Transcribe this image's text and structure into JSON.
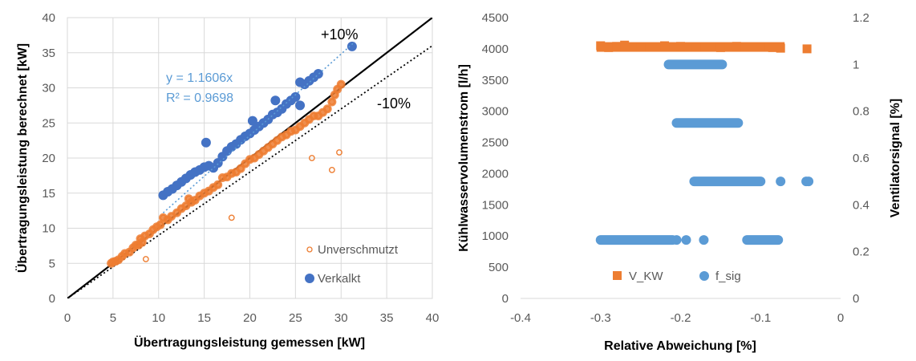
{
  "chart_data": [
    {
      "type": "scatter",
      "xlabel": "Übertragungsleistung gemessen [kW]",
      "ylabel": "Übertragungsleistung berechnet [kW]",
      "xlim": [
        0,
        40
      ],
      "ylim": [
        0,
        40
      ],
      "x_ticks": [
        "0",
        "5",
        "10",
        "15",
        "20",
        "25",
        "30",
        "35",
        "40"
      ],
      "y_ticks": [
        "0",
        "5",
        "10",
        "15",
        "20",
        "25",
        "30",
        "35",
        "40"
      ],
      "grid": true,
      "legend_position": "bottom-right",
      "colors": {
        "unverschmutzt": "#ed7d31",
        "verkalkt": "#4472c4",
        "trend": "#5b9bd5",
        "reference": "#000000"
      },
      "annotations": {
        "plus10": "+10%",
        "minus10": "-10%",
        "equation": "y = 1.1606x",
        "r_squared": "R² = 0.9698"
      },
      "reference_lines": [
        {
          "style": "solid",
          "slope": 1.0
        },
        {
          "style": "dotted",
          "slope": 0.9
        }
      ],
      "trendline": {
        "series": "Verkalkt",
        "slope": 1.1606,
        "style": "dotted"
      },
      "series": [
        {
          "name": "Unverschmutzt",
          "marker": "circle-open",
          "points": [
            [
              4.8,
              5.0
            ],
            [
              5.0,
              5.2
            ],
            [
              5.3,
              5.3
            ],
            [
              5.6,
              5.5
            ],
            [
              6.0,
              6.0
            ],
            [
              6.3,
              6.4
            ],
            [
              6.8,
              6.6
            ],
            [
              7.2,
              7.2
            ],
            [
              7.5,
              7.6
            ],
            [
              7.8,
              7.6
            ],
            [
              8.0,
              8.5
            ],
            [
              8.2,
              8.0
            ],
            [
              8.5,
              8.9
            ],
            [
              8.6,
              5.6
            ],
            [
              9.0,
              9.2
            ],
            [
              9.4,
              9.8
            ],
            [
              9.8,
              10.2
            ],
            [
              10.2,
              10.5
            ],
            [
              10.5,
              11.5
            ],
            [
              11.0,
              11.2
            ],
            [
              11.4,
              11.7
            ],
            [
              12.0,
              12.2
            ],
            [
              12.5,
              12.8
            ],
            [
              13.0,
              13.2
            ],
            [
              13.3,
              14.2
            ],
            [
              13.6,
              13.7
            ],
            [
              14.0,
              14.0
            ],
            [
              14.5,
              14.6
            ],
            [
              15.0,
              15.0
            ],
            [
              15.5,
              15.3
            ],
            [
              16.0,
              15.8
            ],
            [
              16.5,
              16.2
            ],
            [
              17.0,
              17.2
            ],
            [
              17.5,
              17.3
            ],
            [
              18.0,
              17.8
            ],
            [
              18.0,
              11.5
            ],
            [
              18.5,
              18.0
            ],
            [
              19.0,
              18.5
            ],
            [
              19.5,
              19.2
            ],
            [
              20.0,
              19.8
            ],
            [
              20.5,
              20.0
            ],
            [
              21.0,
              20.5
            ],
            [
              21.5,
              21.0
            ],
            [
              22.0,
              21.5
            ],
            [
              22.5,
              22.0
            ],
            [
              23.0,
              22.5
            ],
            [
              23.5,
              23.0
            ],
            [
              24.0,
              23.3
            ],
            [
              24.5,
              23.8
            ],
            [
              25.0,
              24.0
            ],
            [
              25.5,
              24.5
            ],
            [
              26.0,
              25.0
            ],
            [
              26.5,
              25.5
            ],
            [
              26.8,
              20.0
            ],
            [
              27.0,
              26.0
            ],
            [
              27.5,
              26.0
            ],
            [
              28.0,
              26.5
            ],
            [
              28.5,
              27.0
            ],
            [
              29.0,
              18.3
            ],
            [
              29.0,
              28.0
            ],
            [
              29.3,
              29.0
            ],
            [
              29.6,
              29.8
            ],
            [
              29.8,
              20.8
            ],
            [
              30.0,
              30.5
            ]
          ]
        },
        {
          "name": "Verkalkt",
          "marker": "circle-filled",
          "points": [
            [
              10.5,
              14.7
            ],
            [
              11.0,
              15.2
            ],
            [
              11.5,
              15.6
            ],
            [
              12.0,
              16.1
            ],
            [
              12.5,
              16.6
            ],
            [
              13.0,
              17.1
            ],
            [
              13.5,
              17.6
            ],
            [
              14.0,
              18.0
            ],
            [
              14.5,
              18.3
            ],
            [
              15.0,
              18.7
            ],
            [
              15.2,
              22.2
            ],
            [
              15.5,
              18.9
            ],
            [
              16.0,
              18.6
            ],
            [
              16.5,
              19.3
            ],
            [
              17.0,
              20.2
            ],
            [
              17.5,
              21.0
            ],
            [
              18.0,
              21.6
            ],
            [
              18.5,
              22.0
            ],
            [
              19.0,
              22.6
            ],
            [
              19.5,
              23.1
            ],
            [
              20.0,
              23.5
            ],
            [
              20.3,
              25.3
            ],
            [
              20.5,
              24.0
            ],
            [
              21.0,
              24.5
            ],
            [
              21.5,
              25.0
            ],
            [
              22.0,
              25.5
            ],
            [
              22.5,
              26.2
            ],
            [
              22.8,
              28.2
            ],
            [
              23.0,
              26.5
            ],
            [
              23.5,
              27.0
            ],
            [
              24.0,
              27.7
            ],
            [
              24.5,
              28.2
            ],
            [
              25.0,
              28.7
            ],
            [
              25.5,
              27.5
            ],
            [
              25.5,
              30.8
            ],
            [
              26.0,
              30.5
            ],
            [
              26.5,
              31.0
            ],
            [
              27.0,
              31.5
            ],
            [
              27.5,
              32.0
            ],
            [
              31.2,
              35.9
            ]
          ]
        }
      ]
    },
    {
      "type": "scatter",
      "xlabel": "Relative Abweichung [%]",
      "ylabel": "Kühlwasservolumenstrom  [l/h]",
      "y2label": "Ventilatorsignal  [%]",
      "xlim": [
        -0.4,
        0
      ],
      "ylim": [
        0,
        4500
      ],
      "y2lim": [
        0,
        1.2
      ],
      "x_ticks": [
        "-0.4",
        "-0.3",
        "-0.2",
        "-0.1",
        "0"
      ],
      "y_ticks": [
        "0",
        "500",
        "1000",
        "1500",
        "2000",
        "2500",
        "3000",
        "3500",
        "4000",
        "4500"
      ],
      "y2_ticks": [
        "0",
        "0.2",
        "0.4",
        "0.6",
        "0.8",
        "1",
        "1.2"
      ],
      "grid": false,
      "legend_position": "bottom",
      "colors": {
        "v_kw": "#ed7d31",
        "f_sig": "#5b9bd5"
      },
      "series": [
        {
          "name": "V_KW",
          "axis": "left",
          "marker": "square",
          "bands": [
            {
              "y": 4030,
              "x_from": -0.3,
              "x_to": -0.075
            }
          ],
          "points": [
            [
              -0.3,
              4050
            ],
            [
              -0.29,
              4020
            ],
            [
              -0.28,
              4040
            ],
            [
              -0.27,
              4060
            ],
            [
              -0.25,
              4030
            ],
            [
              -0.22,
              4050
            ],
            [
              -0.2,
              4040
            ],
            [
              -0.18,
              4030
            ],
            [
              -0.15,
              4020
            ],
            [
              -0.13,
              4040
            ],
            [
              -0.1,
              4030
            ],
            [
              -0.085,
              4020
            ],
            [
              -0.075,
              4010
            ],
            [
              -0.042,
              4000
            ]
          ]
        },
        {
          "name": "f_sig",
          "axis": "right",
          "marker": "circle",
          "bands": [
            {
              "y": 1.0,
              "x_from": -0.215,
              "x_to": -0.148
            },
            {
              "y": 0.75,
              "x_from": -0.205,
              "x_to": -0.128
            },
            {
              "y": 0.5,
              "x_from": -0.183,
              "x_to": -0.1
            },
            {
              "y": 0.25,
              "x_from": -0.3,
              "x_to": -0.21
            },
            {
              "y": 0.25,
              "x_from": -0.117,
              "x_to": -0.078
            }
          ],
          "points": [
            [
              -0.075,
              0.5
            ],
            [
              -0.043,
              0.5
            ],
            [
              -0.04,
              0.5
            ],
            [
              -0.205,
              0.25
            ],
            [
              -0.193,
              0.25
            ],
            [
              -0.171,
              0.25
            ]
          ]
        }
      ]
    }
  ]
}
